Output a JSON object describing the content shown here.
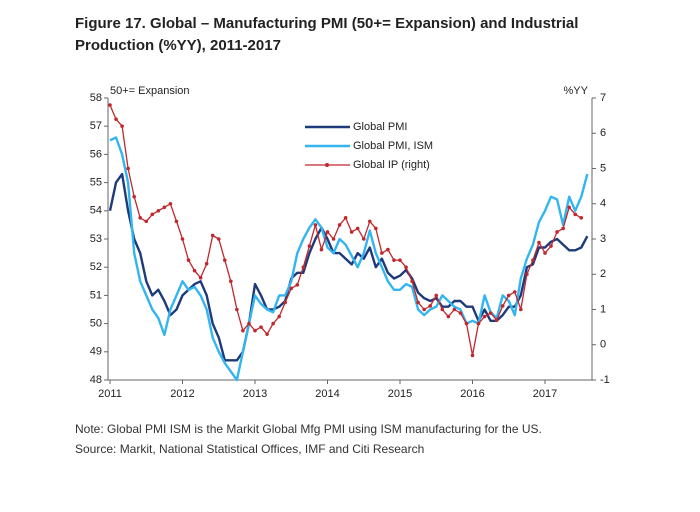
{
  "chart_data": {
    "type": "line",
    "title": "Figure 17. Global – Manufacturing PMI (50+= Expansion) and Industrial Production (%YY), 2011-2017",
    "ylabel": "50+= Expansion",
    "y2label": "%YY",
    "note": "Note: Global PMI ISM is the Markit Global Mfg PMI using ISM manufacturing for the US.",
    "source": "Source: Markit, National Statistical Offices, IMF and Citi Research",
    "categories": [
      "2011",
      null,
      null,
      null,
      null,
      null,
      null,
      null,
      null,
      null,
      null,
      null,
      "2012",
      null,
      null,
      null,
      null,
      null,
      null,
      null,
      null,
      null,
      null,
      null,
      "2013",
      null,
      null,
      null,
      null,
      null,
      null,
      null,
      null,
      null,
      null,
      null,
      "2014",
      null,
      null,
      null,
      null,
      null,
      null,
      null,
      null,
      null,
      null,
      null,
      "2015",
      null,
      null,
      null,
      null,
      null,
      null,
      null,
      null,
      null,
      null,
      null,
      "2016",
      null,
      null,
      null,
      null,
      null,
      null,
      null,
      null,
      null,
      null,
      null,
      "2017",
      null,
      null,
      null,
      null,
      null,
      null,
      null
    ],
    "ylim": [
      48,
      58
    ],
    "yticks": [
      48,
      49,
      50,
      51,
      52,
      53,
      54,
      55,
      56,
      57,
      58
    ],
    "y2lim": [
      -1,
      7
    ],
    "y2ticks": [
      -1,
      0,
      1,
      2,
      3,
      4,
      5,
      6,
      7
    ],
    "legend": "upper center",
    "series": [
      {
        "name": "Global PMI",
        "color": "#1f3a7a",
        "values": [
          54.0,
          55.0,
          55.3,
          54.0,
          53.0,
          52.5,
          51.5,
          51.0,
          51.2,
          50.8,
          50.3,
          50.5,
          51.0,
          51.2,
          51.4,
          51.5,
          51.0,
          50.0,
          49.5,
          48.7,
          48.7,
          48.7,
          49.0,
          50.0,
          51.4,
          51.0,
          50.5,
          50.5,
          50.6,
          50.8,
          51.6,
          51.8,
          51.8,
          52.5,
          53.0,
          53.4,
          53.0,
          52.5,
          52.5,
          52.3,
          52.1,
          52.5,
          52.3,
          52.7,
          52.0,
          52.3,
          51.8,
          51.6,
          51.7,
          51.9,
          51.6,
          51.1,
          50.9,
          50.8,
          50.9,
          50.6,
          50.6,
          50.8,
          50.8,
          50.6,
          50.6,
          50.1,
          50.5,
          50.1,
          50.1,
          50.3,
          50.6,
          50.6,
          51.0,
          52.0,
          52.1,
          52.7,
          52.7,
          52.9,
          53.0,
          52.8,
          52.6,
          52.6,
          52.7,
          53.1
        ]
      },
      {
        "name": "Global PMI, ISM",
        "color": "#33b5f0",
        "values": [
          56.5,
          56.6,
          56.0,
          55.0,
          52.5,
          51.5,
          51.0,
          50.5,
          50.2,
          49.6,
          50.5,
          51.0,
          51.5,
          51.2,
          51.3,
          51.0,
          50.5,
          49.5,
          49.0,
          48.6,
          48.3,
          48.0,
          49.0,
          50.0,
          51.0,
          50.7,
          50.5,
          50.4,
          51.0,
          51.0,
          51.5,
          52.5,
          53.0,
          53.4,
          53.7,
          53.4,
          52.7,
          52.5,
          53.0,
          52.8,
          52.4,
          52.0,
          52.5,
          53.3,
          52.5,
          52.0,
          51.5,
          51.2,
          51.2,
          51.4,
          51.3,
          50.5,
          50.3,
          50.5,
          50.6,
          51.0,
          50.8,
          50.6,
          50.5,
          50.0,
          50.1,
          50.0,
          51.0,
          50.4,
          50.2,
          51.0,
          50.8,
          50.3,
          51.6,
          52.3,
          52.8,
          53.6,
          54.0,
          54.5,
          54.4,
          53.5,
          54.5,
          54.0,
          54.5,
          55.3
        ]
      },
      {
        "name": "Global IP (right)",
        "color": "#c0282d",
        "axis": "y2",
        "values": [
          6.8,
          6.4,
          6.2,
          5.0,
          4.2,
          3.6,
          3.5,
          3.7,
          3.8,
          3.9,
          4.0,
          3.5,
          3.0,
          2.4,
          2.1,
          1.9,
          2.3,
          3.1,
          3.0,
          2.4,
          1.8,
          1.0,
          0.4,
          0.6,
          0.4,
          0.5,
          0.3,
          0.6,
          0.8,
          1.2,
          1.6,
          1.7,
          2.2,
          2.8,
          3.4,
          2.7,
          3.2,
          3.0,
          3.4,
          3.6,
          3.2,
          3.3,
          3.0,
          3.5,
          3.3,
          2.6,
          2.7,
          2.4,
          2.4,
          2.2,
          1.8,
          1.2,
          1.0,
          1.1,
          1.4,
          1.0,
          0.8,
          1.0,
          0.9,
          0.6,
          -0.3,
          0.6,
          0.8,
          0.9,
          0.7,
          1.1,
          1.4,
          1.5,
          1.0,
          2.0,
          2.4,
          2.9,
          2.6,
          2.8,
          3.2,
          3.3,
          3.9,
          3.7,
          3.6,
          null
        ]
      }
    ]
  }
}
